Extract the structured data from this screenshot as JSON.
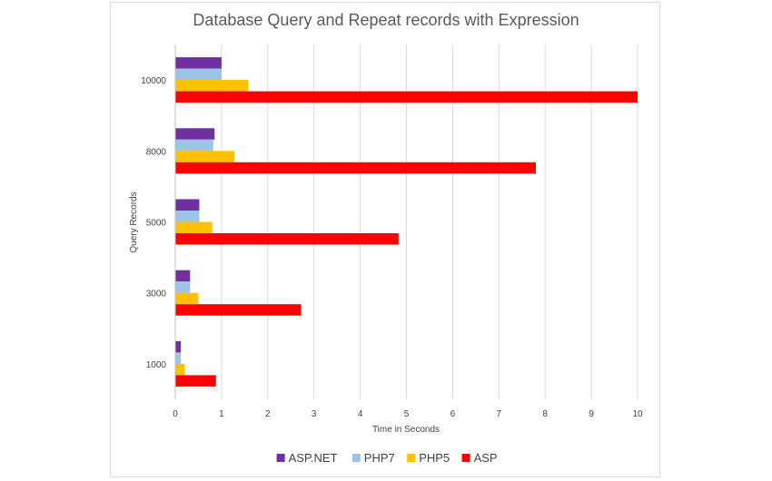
{
  "chart_data": {
    "type": "bar",
    "orientation": "horizontal",
    "title": "Database Query and Repeat records with Expression",
    "xlabel": "Time in Seconds",
    "ylabel": "Query Records",
    "xlim": [
      0,
      10
    ],
    "x_ticks": [
      "0",
      "1",
      "2",
      "3",
      "4",
      "5",
      "6",
      "7",
      "8",
      "9",
      "10"
    ],
    "categories": [
      "1000",
      "3000",
      "5000",
      "8000",
      "10000"
    ],
    "series": [
      {
        "name": "ASP.NET",
        "color": "#7030a0",
        "values": [
          0.12,
          0.32,
          0.52,
          0.85,
          1.0
        ]
      },
      {
        "name": "PHP7",
        "color": "#9dc3e6",
        "values": [
          0.12,
          0.32,
          0.52,
          0.82,
          1.0
        ]
      },
      {
        "name": "PHP5",
        "color": "#ffc000",
        "values": [
          0.2,
          0.5,
          0.8,
          1.28,
          1.58
        ]
      },
      {
        "name": "ASP",
        "color": "#ff0000",
        "values": [
          0.88,
          2.72,
          4.83,
          7.8,
          10.0
        ]
      }
    ],
    "grid": "vertical",
    "legend_position": "bottom"
  }
}
